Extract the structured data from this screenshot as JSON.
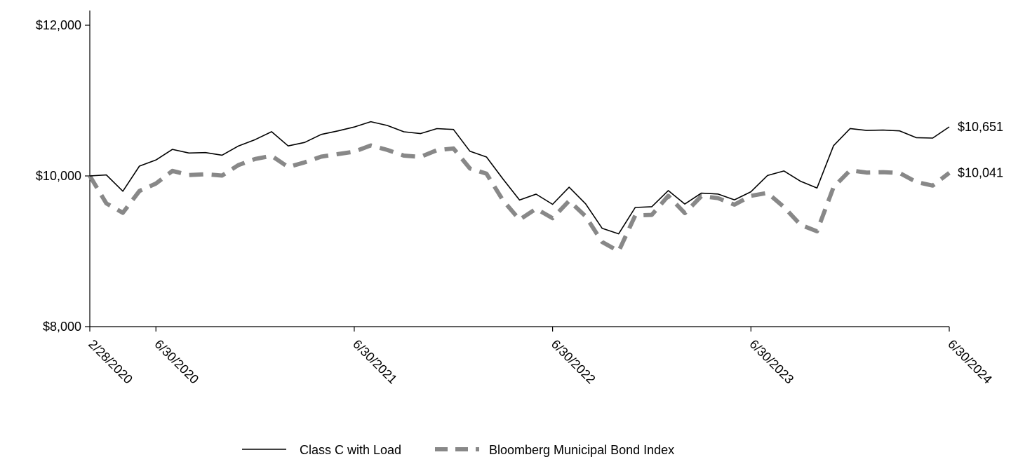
{
  "chart_data": {
    "type": "line",
    "title": "",
    "xlabel": "",
    "ylabel": "",
    "ylim": [
      8000,
      12000
    ],
    "y_ticks": [
      "$8,000",
      "$10,000",
      "$12,000"
    ],
    "y_tick_values": [
      8000,
      10000,
      12000
    ],
    "x_ticks": [
      "2/28/2020",
      "6/30/2020",
      "6/30/2021",
      "6/30/2022",
      "6/30/2023",
      "6/30/2024"
    ],
    "x_tick_positions": [
      0,
      4,
      16,
      28,
      40,
      52
    ],
    "grid": false,
    "legend_position": "bottom-center",
    "series": [
      {
        "name": "Class C with Load",
        "style": "solid",
        "color": "#000000",
        "end_label": "$10,651",
        "values": [
          10000,
          10013,
          9797,
          10130,
          10211,
          10353,
          10304,
          10310,
          10275,
          10398,
          10482,
          10587,
          10398,
          10445,
          10551,
          10597,
          10649,
          10720,
          10670,
          10586,
          10562,
          10628,
          10617,
          10327,
          10251,
          9959,
          9680,
          9758,
          9623,
          9850,
          9630,
          9304,
          9232,
          9581,
          9592,
          9806,
          9627,
          9771,
          9760,
          9683,
          9790,
          10006,
          10066,
          9929,
          9840,
          10402,
          10629,
          10604,
          10608,
          10598,
          10508,
          10502,
          10651
        ]
      },
      {
        "name": "Bloomberg Municipal Bond Index",
        "style": "dashed",
        "color": "#888888",
        "end_label": "$10,041",
        "values": [
          10000,
          9635,
          9511,
          9800,
          9899,
          10067,
          10011,
          10022,
          10005,
          10145,
          10225,
          10267,
          10118,
          10180,
          10256,
          10289,
          10322,
          10405,
          10345,
          10270,
          10252,
          10341,
          10365,
          10099,
          10030,
          9676,
          9419,
          9565,
          9439,
          9670,
          9464,
          9123,
          9001,
          9474,
          9483,
          9736,
          9506,
          9731,
          9706,
          9619,
          9736,
          9775,
          9587,
          9352,
          9265,
          9851,
          10074,
          10045,
          10050,
          10039,
          9920,
          9872,
          10041
        ]
      }
    ]
  }
}
